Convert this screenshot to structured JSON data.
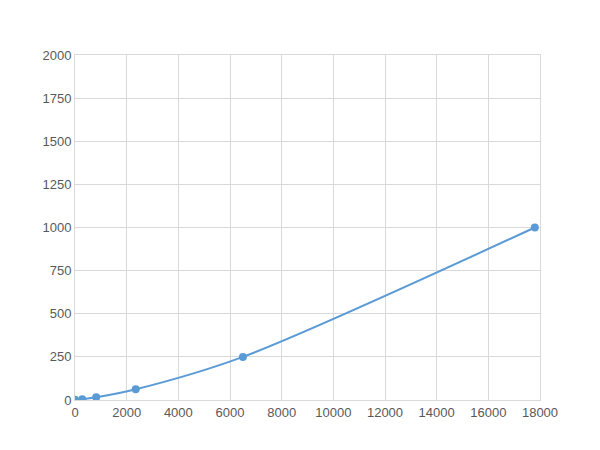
{
  "chart_data": {
    "type": "line",
    "x": [
      0,
      280,
      820,
      2350,
      6500,
      17800
    ],
    "values": [
      2,
      5,
      16,
      62,
      250,
      1000
    ],
    "color": "#5b9bd5",
    "marker": "circle",
    "line_style": "solid",
    "xlim": [
      0,
      18000
    ],
    "xticks": [
      0,
      2000,
      4000,
      6000,
      8000,
      10000,
      12000,
      14000,
      16000,
      18000
    ],
    "ylim": [
      0,
      2000
    ],
    "yticks": [
      0,
      250,
      500,
      750,
      1000,
      1250,
      1500,
      1750,
      2000
    ],
    "grid": true
  }
}
